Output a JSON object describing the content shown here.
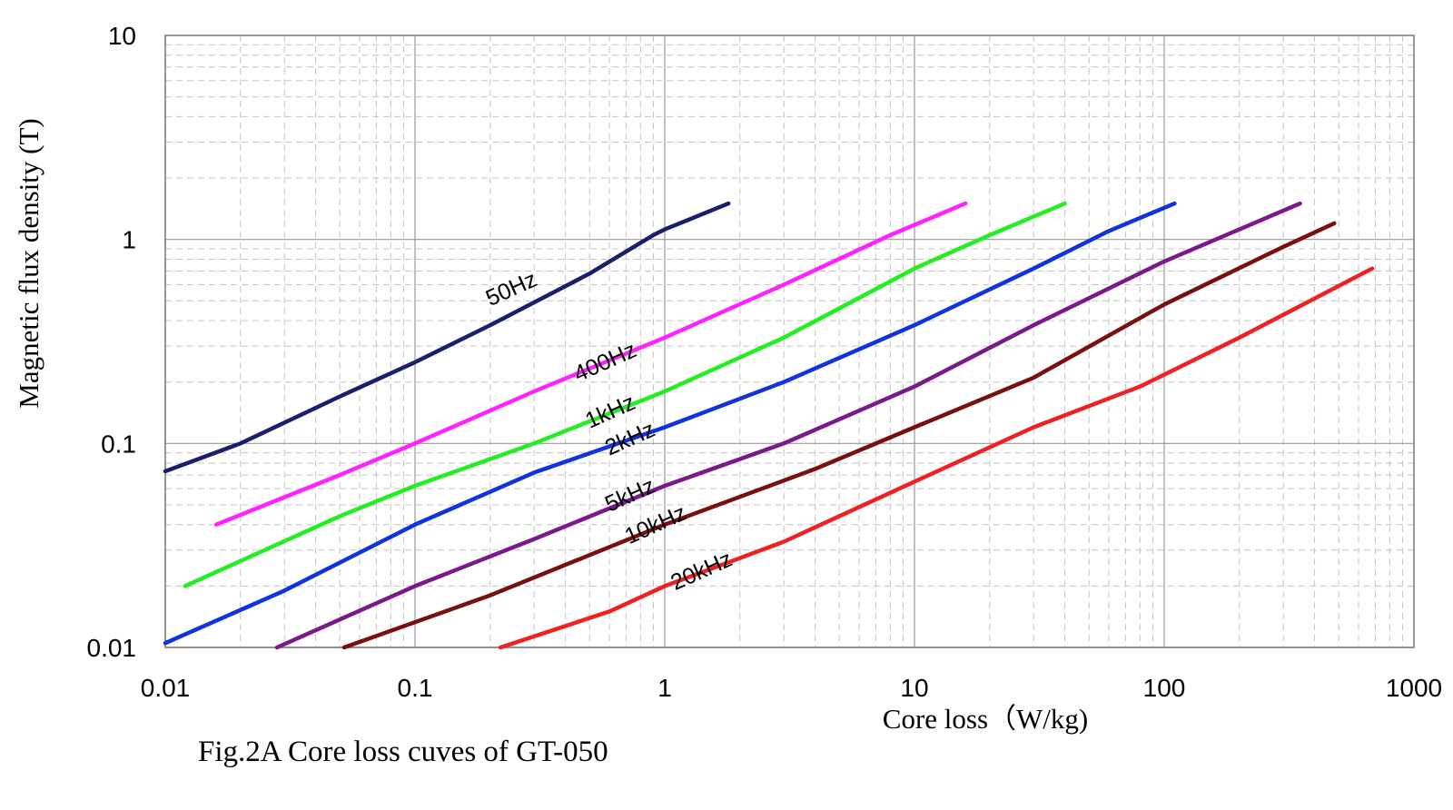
{
  "chart_data": {
    "type": "line",
    "xscale": "log",
    "yscale": "log",
    "xlim": [
      0.01,
      1000
    ],
    "ylim": [
      0.01,
      10
    ],
    "grid": true,
    "xlabel": "Core loss（W/kg)",
    "ylabel": "Magnetic flux density (T)",
    "caption": "Fig.2A Core loss cuves of GT-050",
    "x_ticks": [
      "0.01",
      "0.1",
      "1",
      "10",
      "100",
      "1000"
    ],
    "y_ticks": [
      "0.01",
      "0.1",
      "1",
      "10"
    ],
    "series": [
      {
        "name": "50Hz",
        "color": "#1a1f6b",
        "points": [
          [
            0.01,
            0.073
          ],
          [
            0.02,
            0.1
          ],
          [
            0.05,
            0.17
          ],
          [
            0.1,
            0.25
          ],
          [
            0.2,
            0.38
          ],
          [
            0.5,
            0.68
          ],
          [
            0.9,
            1.05
          ],
          [
            1.0,
            1.12
          ],
          [
            1.8,
            1.5
          ]
        ]
      },
      {
        "name": "400Hz",
        "color": "#ff22ff",
        "points": [
          [
            0.016,
            0.04
          ],
          [
            0.05,
            0.07
          ],
          [
            0.1,
            0.1
          ],
          [
            0.3,
            0.18
          ],
          [
            1.0,
            0.33
          ],
          [
            3.0,
            0.6
          ],
          [
            8.0,
            1.05
          ],
          [
            16.0,
            1.5
          ]
        ]
      },
      {
        "name": "1kHz",
        "color": "#22ee22",
        "points": [
          [
            0.012,
            0.02
          ],
          [
            0.05,
            0.044
          ],
          [
            0.1,
            0.062
          ],
          [
            0.3,
            0.1
          ],
          [
            1.0,
            0.18
          ],
          [
            3.0,
            0.33
          ],
          [
            10.0,
            0.72
          ],
          [
            20.0,
            1.05
          ],
          [
            40.0,
            1.5
          ]
        ]
      },
      {
        "name": "2kHz",
        "color": "#1133dd",
        "points": [
          [
            0.01,
            0.0105
          ],
          [
            0.03,
            0.019
          ],
          [
            0.1,
            0.04
          ],
          [
            0.3,
            0.072
          ],
          [
            1.0,
            0.12
          ],
          [
            3.0,
            0.2
          ],
          [
            10.0,
            0.38
          ],
          [
            30.0,
            0.72
          ],
          [
            60.0,
            1.1
          ],
          [
            110.0,
            1.5
          ]
        ]
      },
      {
        "name": "5kHz",
        "color": "#7a1a8a",
        "points": [
          [
            0.028,
            0.01
          ],
          [
            0.1,
            0.02
          ],
          [
            0.3,
            0.034
          ],
          [
            1.0,
            0.062
          ],
          [
            3.0,
            0.1
          ],
          [
            10.0,
            0.19
          ],
          [
            30.0,
            0.38
          ],
          [
            100.0,
            0.78
          ],
          [
            200.0,
            1.12
          ],
          [
            350.0,
            1.5
          ]
        ]
      },
      {
        "name": "10kHz",
        "color": "#7a0f0f",
        "points": [
          [
            0.052,
            0.01
          ],
          [
            0.2,
            0.018
          ],
          [
            1.0,
            0.04
          ],
          [
            4.0,
            0.075
          ],
          [
            10.0,
            0.12
          ],
          [
            30.0,
            0.21
          ],
          [
            100.0,
            0.48
          ],
          [
            300.0,
            0.92
          ],
          [
            480.0,
            1.2
          ]
        ]
      },
      {
        "name": "20kHz",
        "color": "#ee2222",
        "points": [
          [
            0.22,
            0.01
          ],
          [
            0.6,
            0.015
          ],
          [
            1.0,
            0.02
          ],
          [
            3.0,
            0.033
          ],
          [
            10.0,
            0.065
          ],
          [
            30.0,
            0.12
          ],
          [
            80.0,
            0.19
          ],
          [
            200.0,
            0.33
          ],
          [
            680.0,
            0.72
          ]
        ]
      }
    ],
    "labels": [
      {
        "text": "50Hz",
        "x": 0.2,
        "y": 0.47,
        "color": "#000000"
      },
      {
        "text": "400Hz",
        "x": 0.45,
        "y": 0.2,
        "color": "#000000"
      },
      {
        "text": "1kHz",
        "x": 0.5,
        "y": 0.118,
        "color": "#000000"
      },
      {
        "text": "2kHz",
        "x": 0.6,
        "y": 0.087,
        "color": "#000000"
      },
      {
        "text": "5kHz",
        "x": 0.6,
        "y": 0.046,
        "color": "#000000"
      },
      {
        "text": "10kHz",
        "x": 0.72,
        "y": 0.032,
        "color": "#000000"
      },
      {
        "text": "20kHz",
        "x": 1.1,
        "y": 0.019,
        "color": "#000000"
      }
    ]
  }
}
